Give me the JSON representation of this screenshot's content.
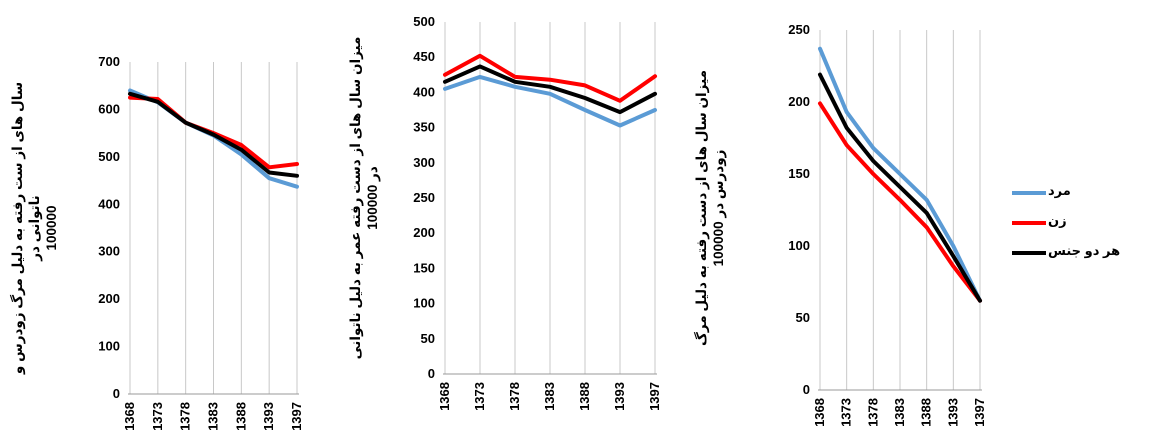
{
  "chart_data": [
    {
      "type": "line",
      "ylabel": [
        "سال های از ست رفته به دلیل مرگ زودرس و",
        "ناتوانی در",
        "100000"
      ],
      "x": [
        "1368",
        "1373",
        "1378",
        "1383",
        "1388",
        "1393",
        "1397"
      ],
      "ylim": [
        0,
        700
      ],
      "yticks": [
        0,
        100,
        200,
        300,
        400,
        500,
        600,
        700
      ],
      "grid": "vertical",
      "series": [
        {
          "name": "مرد",
          "color": "#5B9BD5",
          "values": [
            640,
            615,
            572,
            545,
            505,
            455,
            437
          ]
        },
        {
          "name": "زن",
          "color": "#FF0000",
          "values": [
            625,
            622,
            572,
            550,
            525,
            478,
            485
          ]
        },
        {
          "name": "هر دو جنس",
          "color": "#000000",
          "values": [
            633,
            616,
            572,
            547,
            515,
            467,
            460
          ]
        }
      ]
    },
    {
      "type": "line",
      "ylabel": [
        "میزان سال های از دست رفته عمر به دلیل ناتوانی",
        "در 100000",
        ""
      ],
      "x": [
        "1368",
        "1373",
        "1378",
        "1383",
        "1388",
        "1393",
        "1397"
      ],
      "ylim": [
        0,
        500
      ],
      "yticks": [
        0,
        50,
        100,
        150,
        200,
        250,
        300,
        350,
        400,
        450,
        500
      ],
      "grid": "vertical",
      "series": [
        {
          "name": "مرد",
          "color": "#5B9BD5",
          "values": [
            405,
            422,
            408,
            398,
            375,
            353,
            375
          ]
        },
        {
          "name": "زن",
          "color": "#FF0000",
          "values": [
            425,
            452,
            422,
            418,
            410,
            388,
            423
          ]
        },
        {
          "name": "هر دو جنس",
          "color": "#000000",
          "values": [
            415,
            437,
            415,
            408,
            392,
            372,
            398
          ]
        }
      ]
    },
    {
      "type": "line",
      "ylabel": [
        "میزان سال های از دست رفته به دلیل مرگ",
        "زودرس در 100000",
        ""
      ],
      "x": [
        "1368",
        "1373",
        "1378",
        "1383",
        "1388",
        "1393",
        "1397"
      ],
      "ylim": [
        0,
        250
      ],
      "yticks": [
        0,
        50,
        100,
        150,
        200,
        250
      ],
      "grid": "vertical",
      "series": [
        {
          "name": "مرد",
          "color": "#5B9BD5",
          "values": [
            237,
            193,
            168,
            150,
            132,
            100,
            62
          ]
        },
        {
          "name": "زن",
          "color": "#FF0000",
          "values": [
            199,
            170,
            150,
            132,
            113,
            86,
            62
          ]
        },
        {
          "name": "هر دو جنس",
          "color": "#000000",
          "values": [
            219,
            182,
            159,
            141,
            123,
            93,
            62
          ]
        }
      ]
    }
  ],
  "legend": {
    "placement": "right",
    "items": [
      {
        "label": "مرد",
        "color": "#5B9BD5"
      },
      {
        "label": "زن",
        "color": "#FF0000"
      },
      {
        "label": "هر دو جنس",
        "color": "#000000"
      }
    ]
  }
}
